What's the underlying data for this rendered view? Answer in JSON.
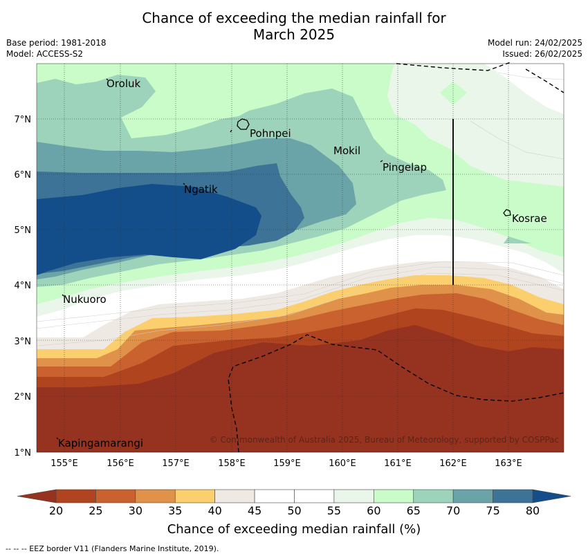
{
  "header": {
    "title_line1": "Chance of exceeding the median rainfall for",
    "title_line2": "March 2025",
    "base_period": "Base period: 1981-2018",
    "model": "Model: ACCESS-S2",
    "model_run": "Model run: 24/02/2025",
    "issued": "Issued: 26/02/2025"
  },
  "map": {
    "lon_ticks": [
      "155°E",
      "156°E",
      "157°E",
      "158°E",
      "159°E",
      "160°E",
      "161°E",
      "162°E",
      "163°E"
    ],
    "lat_ticks": [
      "1°N",
      "2°N",
      "3°N",
      "4°N",
      "5°N",
      "6°N",
      "7°N"
    ],
    "places": [
      {
        "name": "Oroluk"
      },
      {
        "name": "Pohnpei"
      },
      {
        "name": "Mokil"
      },
      {
        "name": "Pingelap"
      },
      {
        "name": "Ngatik"
      },
      {
        "name": "Kosrae"
      },
      {
        "name": "Nukuoro"
      },
      {
        "name": "Kapingamarangi"
      }
    ],
    "copyright": "© Commonwealth of Australia 2025, Bureau of Meteorology, supported by COSPPac"
  },
  "colorbar": {
    "title": "Chance of exceeding median rainfall (%)",
    "ticks": [
      "20",
      "25",
      "30",
      "35",
      "40",
      "45",
      "50",
      "55",
      "60",
      "65",
      "70",
      "75",
      "80"
    ],
    "colors": [
      "#b0441f",
      "#c9622e",
      "#e0924a",
      "#fccf6e",
      "#efe9e4",
      "#ffffff",
      "#ffffff",
      "#e9f6e9",
      "#c9fcc9",
      "#9dd3ba",
      "#6aa3a8",
      "#3c7397"
    ],
    "under_color": "#963320",
    "over_color": "#134e8a"
  },
  "footnote": "--  --  -- EEZ border V11 (Flanders Marine Institute, 2019)."
}
